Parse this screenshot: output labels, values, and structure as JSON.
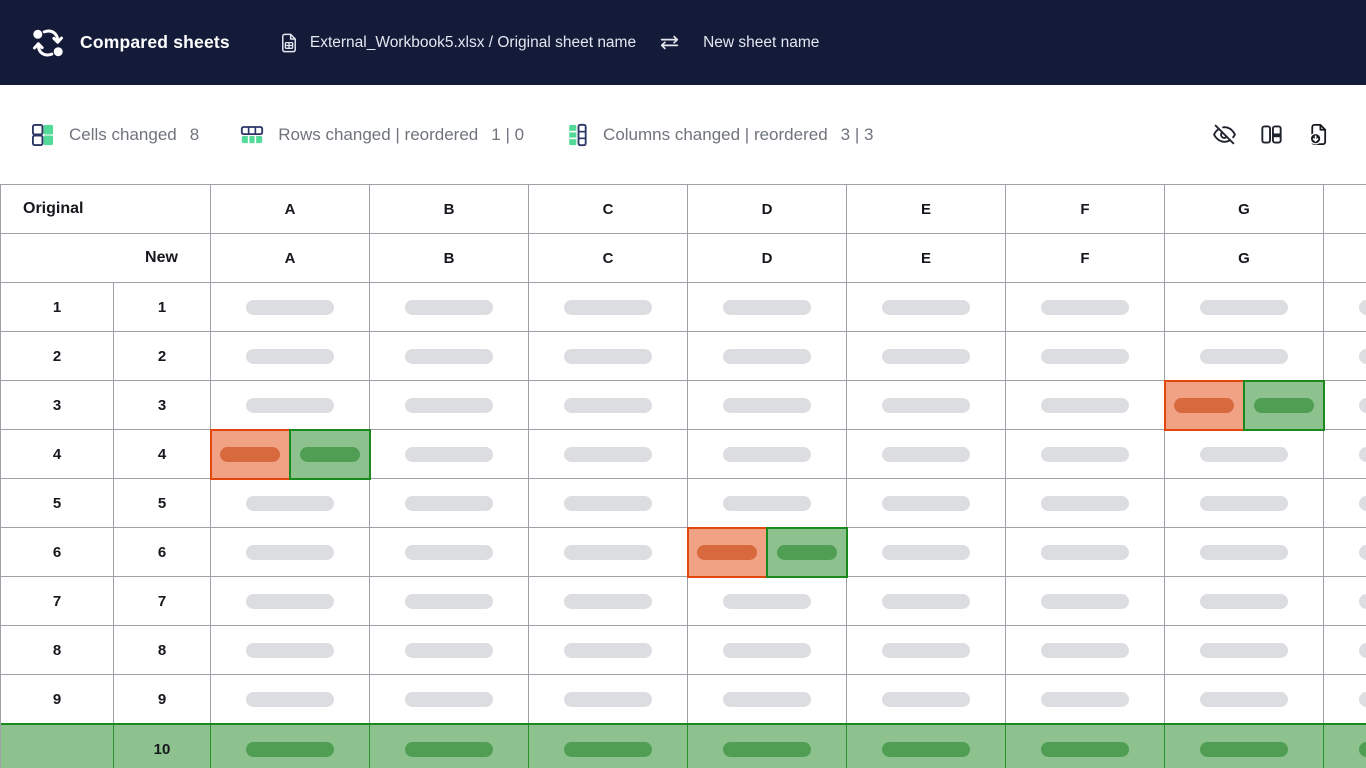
{
  "header": {
    "title": "Compared sheets",
    "workbook_label": "External_Workbook5.xlsx / Original sheet name",
    "new_sheet_label": "New sheet name"
  },
  "stats": {
    "cells_changed": {
      "label": "Cells changed",
      "value": "8"
    },
    "rows_changed": {
      "label": "Rows changed | reordered",
      "value": "1 | 0"
    },
    "columns_changed": {
      "label": "Columns changed | reordered",
      "value": "3 | 3"
    }
  },
  "toolbar": {
    "icons": [
      "eye-off-icon",
      "side-by-side-columns-icon",
      "download-report-icon"
    ]
  },
  "table": {
    "original_label": "Original",
    "new_label": "New",
    "original_columns": [
      "A",
      "B",
      "C",
      "D",
      "E",
      "F",
      "G",
      ""
    ],
    "new_columns": [
      "A",
      "B",
      "C",
      "D",
      "E",
      "F",
      "G",
      ""
    ],
    "rows": [
      {
        "original_num": "1",
        "new_num": "1",
        "changed_columns": [],
        "added": false
      },
      {
        "original_num": "2",
        "new_num": "2",
        "changed_columns": [],
        "added": false
      },
      {
        "original_num": "3",
        "new_num": "3",
        "changed_columns": [
          "G"
        ],
        "added": false
      },
      {
        "original_num": "4",
        "new_num": "4",
        "changed_columns": [
          "A"
        ],
        "added": false
      },
      {
        "original_num": "5",
        "new_num": "5",
        "changed_columns": [],
        "added": false
      },
      {
        "original_num": "6",
        "new_num": "6",
        "changed_columns": [
          "D"
        ],
        "added": false
      },
      {
        "original_num": "7",
        "new_num": "7",
        "changed_columns": [],
        "added": false
      },
      {
        "original_num": "8",
        "new_num": "8",
        "changed_columns": [],
        "added": false
      },
      {
        "original_num": "9",
        "new_num": "9",
        "changed_columns": [],
        "added": false
      },
      {
        "original_num": "",
        "new_num": "10",
        "changed_columns": [],
        "added": true
      }
    ]
  },
  "colors": {
    "header_bg": "#131b39",
    "accent_green": "#53d998",
    "accent_navy": "#2b3566",
    "grid_line": "#9da1a7",
    "pill_gray": "#dcdde0",
    "red_border": "#e4470d",
    "red_bg": "#f1a285",
    "red_pill": "#d7693d",
    "green_border": "#1b8a1e",
    "green_bg": "#8dc18d",
    "green_pill": "#4f9e53",
    "added_row_line": "#27922b"
  }
}
